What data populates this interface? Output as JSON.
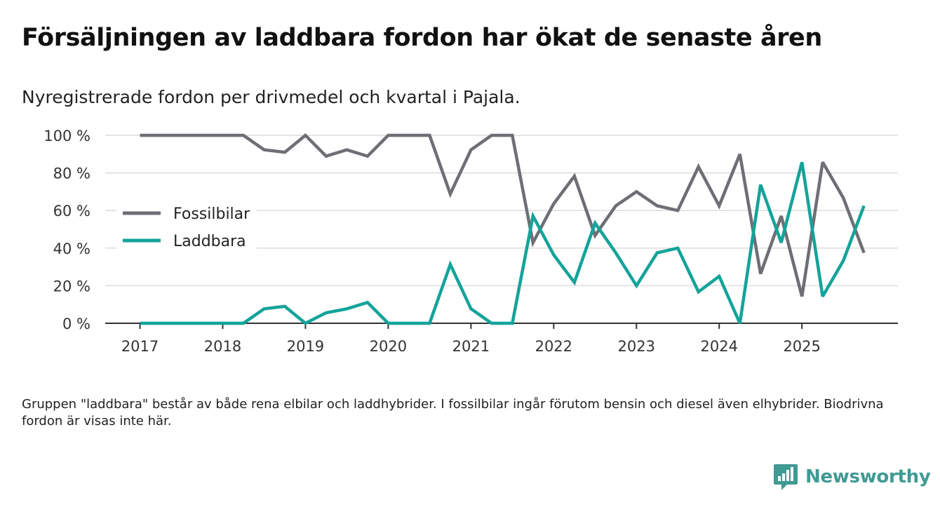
{
  "title": "Försäljningen av laddbara fordon har ökat de senaste åren",
  "subtitle": "Nyregistrerade fordon per drivmedel och kvartal i Pajala.",
  "footnote": "Gruppen \"laddbara\" består av både rena elbilar och laddhybrider. I fossilbilar ingår förutom bensin och diesel även elhybrider. Biodrivna fordon är visas inte här.",
  "brand": {
    "name": "Newsworthy",
    "icon": "newsworthy-logo-icon",
    "color": "#3f9a94"
  },
  "chart_data": {
    "type": "line",
    "title": "Försäljningen av laddbara fordon har ökat de senaste åren",
    "xlabel": "",
    "ylabel": "",
    "ylim": [
      0,
      100
    ],
    "xlim": [
      2016.58,
      2026.16
    ],
    "grid": true,
    "legend": "center-left",
    "y_ticks": [
      {
        "value": 0,
        "label": "0 %"
      },
      {
        "value": 20,
        "label": "20 %"
      },
      {
        "value": 40,
        "label": "40 %"
      },
      {
        "value": 60,
        "label": "60 %"
      },
      {
        "value": 80,
        "label": "80 %"
      },
      {
        "value": 100,
        "label": "100 %"
      }
    ],
    "x_ticks": [
      {
        "value": 2017,
        "label": "2017"
      },
      {
        "value": 2018,
        "label": "2018"
      },
      {
        "value": 2019,
        "label": "2019"
      },
      {
        "value": 2020,
        "label": "2020"
      },
      {
        "value": 2021,
        "label": "2021"
      },
      {
        "value": 2022,
        "label": "2022"
      },
      {
        "value": 2023,
        "label": "2023"
      },
      {
        "value": 2024,
        "label": "2024"
      },
      {
        "value": 2025,
        "label": "2025"
      }
    ],
    "x": [
      2017.0,
      2017.25,
      2017.5,
      2017.75,
      2018.0,
      2018.25,
      2018.5,
      2018.75,
      2019.0,
      2019.25,
      2019.5,
      2019.75,
      2020.0,
      2020.25,
      2020.5,
      2020.75,
      2021.0,
      2021.25,
      2021.5,
      2021.75,
      2022.0,
      2022.25,
      2022.5,
      2022.75,
      2023.0,
      2023.25,
      2023.5,
      2023.75,
      2024.0,
      2024.25,
      2024.5,
      2024.75,
      2025.0,
      2025.25,
      2025.5,
      2025.75
    ],
    "series": [
      {
        "name": "Fossilbilar",
        "color": "#6e6e75",
        "values": [
          100,
          100,
          100,
          100,
          100,
          100,
          92.3,
          91,
          100,
          88.9,
          92.3,
          88.9,
          100,
          100,
          100,
          68.8,
          92.3,
          100,
          100,
          42.9,
          63.6,
          78.3,
          46.7,
          62.5,
          70,
          62.5,
          60,
          83.3,
          62.5,
          90,
          26.3,
          57.1,
          14.3,
          85.7,
          66.7,
          37.5
        ]
      },
      {
        "name": "Laddbara",
        "color": "#13a39a",
        "values": [
          0,
          0,
          0,
          0,
          0,
          0,
          7.7,
          9,
          0,
          5.6,
          7.7,
          11.1,
          0,
          0,
          0,
          31.3,
          7.7,
          0,
          0,
          57.1,
          36.4,
          21.7,
          53.3,
          37.5,
          20,
          37.5,
          40,
          16.7,
          25,
          0,
          73.7,
          42.9,
          85.7,
          14.3,
          33.3,
          62.5
        ]
      }
    ]
  }
}
